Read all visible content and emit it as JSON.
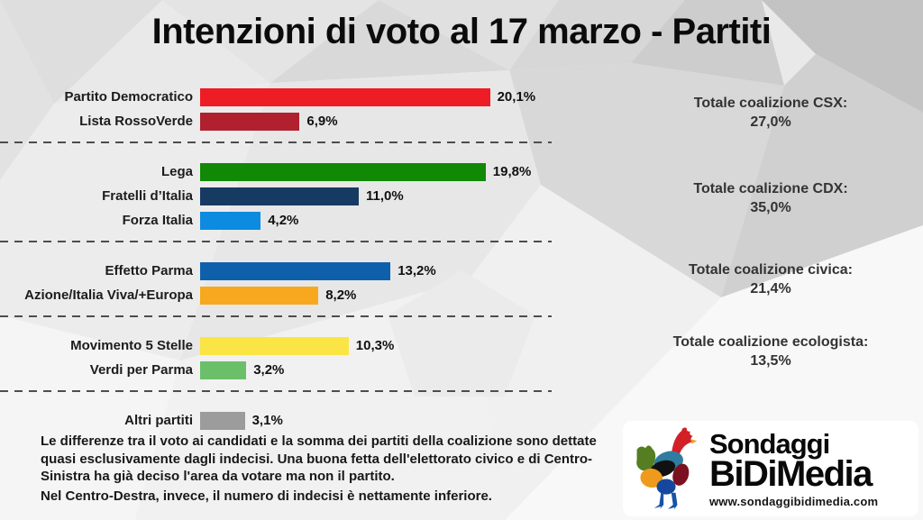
{
  "title": "Intenzioni di voto al 17 marzo - Partiti",
  "chart_data": {
    "type": "bar",
    "orientation": "horizontal",
    "unit": "%",
    "xlim": [
      0,
      22
    ],
    "grid": false,
    "legend": "none",
    "groups": [
      {
        "parties": [
          {
            "label": "Partito Democratico",
            "value": 20.1,
            "value_label": "20,1%",
            "color": "#ee1c25"
          },
          {
            "label": "Lista RossoVerde",
            "value": 6.9,
            "value_label": "6,9%",
            "color": "#b1202f"
          }
        ],
        "total": {
          "label": "Totale coalizione CSX:",
          "value": 27.0,
          "value_label": "27,0%"
        }
      },
      {
        "parties": [
          {
            "label": "Lega",
            "value": 19.8,
            "value_label": "19,8%",
            "color": "#118806"
          },
          {
            "label": "Fratelli d’Italia",
            "value": 11.0,
            "value_label": "11,0%",
            "color": "#173a63"
          },
          {
            "label": "Forza Italia",
            "value": 4.2,
            "value_label": "4,2%",
            "color": "#0c8be0"
          }
        ],
        "total": {
          "label": "Totale coalizione CDX:",
          "value": 35.0,
          "value_label": "35,0%"
        }
      },
      {
        "parties": [
          {
            "label": "Effetto Parma",
            "value": 13.2,
            "value_label": "13,2%",
            "color": "#0f60ab"
          },
          {
            "label": "Azione/Italia Viva/+Europa",
            "value": 8.2,
            "value_label": "8,2%",
            "color": "#f8a81e"
          }
        ],
        "total": {
          "label": "Totale coalizione civica:",
          "value": 21.4,
          "value_label": "21,4%"
        }
      },
      {
        "parties": [
          {
            "label": "Movimento 5 Stelle",
            "value": 10.3,
            "value_label": "10,3%",
            "color": "#fbe544"
          },
          {
            "label": "Verdi per Parma",
            "value": 3.2,
            "value_label": "3,2%",
            "color": "#6cbf69"
          }
        ],
        "total": {
          "label": "Totale coalizione ecologista:",
          "value": 13.5,
          "value_label": "13,5%"
        }
      },
      {
        "parties": [
          {
            "label": "Altri partiti",
            "value": 3.1,
            "value_label": "3,1%",
            "color": "#9c9c9c"
          }
        ],
        "total": null
      }
    ]
  },
  "footnote": {
    "p1": "Le differenze tra il voto ai candidati e la somma dei partiti della coalizione sono dettate quasi esclusivamente dagli indecisi. Una buona fetta dell'elettorato civico e di Centro-Sinistra ha già deciso l'area da votare ma non il partito.",
    "p2": "Nel Centro-Destra, invece, il numero di indecisi è nettamente inferiore."
  },
  "logo": {
    "line1": "Sondaggi",
    "line2": "BiDiMedia",
    "url": "www.sondaggibidimedia.com",
    "rooster_colors": [
      "#d32026",
      "#557d21",
      "#2f7ca0",
      "#111111",
      "#ef9a1d",
      "#7a1020",
      "#15489c"
    ]
  }
}
